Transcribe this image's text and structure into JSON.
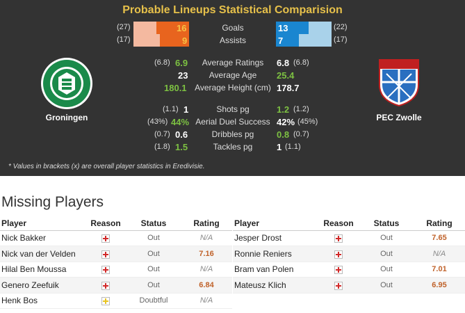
{
  "panel": {
    "title": "Probable Lineups Statistical Comparision",
    "home": {
      "name": "Groningen",
      "goals": "16",
      "goals_bracket": "(27)",
      "assists": "9",
      "assists_bracket": "(17)",
      "goals_fill": 0.59,
      "assists_fill": 0.53
    },
    "away": {
      "name": "PEC Zwolle",
      "goals": "13",
      "goals_bracket": "(22)",
      "assists": "7",
      "assists_bracket": "(17)",
      "goals_fill": 0.59,
      "assists_fill": 0.41
    },
    "bar_labels": {
      "goals": "Goals",
      "assists": "Assists"
    },
    "stats": [
      {
        "label": "Average Ratings",
        "home_bracket": "(6.8)",
        "home": "6.9",
        "away": "6.8",
        "away_bracket": "(6.8)"
      },
      {
        "label": "Average Age",
        "home_bracket": "",
        "home": "23",
        "away": "25.4",
        "away_bracket": ""
      },
      {
        "label": "Average Height (cm)",
        "home_bracket": "",
        "home": "180.1",
        "away": "178.7",
        "away_bracket": ""
      },
      {
        "label": "Shots pg",
        "home_bracket": "(1.1)",
        "home": "1",
        "away": "1.2",
        "away_bracket": "(1.2)"
      },
      {
        "label": "Aerial Duel Success",
        "home_bracket": "(43%)",
        "home": "44%",
        "away": "42%",
        "away_bracket": "(45%)"
      },
      {
        "label": "Dribbles pg",
        "home_bracket": "(0.7)",
        "home": "0.6",
        "away": "0.8",
        "away_bracket": "(0.7)"
      },
      {
        "label": "Tackles pg",
        "home_bracket": "(1.8)",
        "home": "1.5",
        "away": "1",
        "away_bracket": "(1.1)"
      }
    ],
    "footnote": "* Values in brackets (x) are overall player statistics in Eredivisie.",
    "colors": {
      "home_bar": "#e8641e",
      "home_bar_light": "#f4b9a0",
      "away_bar": "#1a86d0",
      "away_bar_light": "#a9d2ea",
      "better": "#7dc142"
    }
  },
  "missing": {
    "title": "Missing Players",
    "headers": {
      "player": "Player",
      "reason": "Reason",
      "status": "Status",
      "rating": "Rating"
    },
    "home": [
      {
        "player": "Nick Bakker",
        "status": "Out",
        "rating": "N/A"
      },
      {
        "player": "Nick van der Velden",
        "status": "Out",
        "rating": "7.16"
      },
      {
        "player": "Hilal Ben Moussa",
        "status": "Out",
        "rating": "N/A"
      },
      {
        "player": "Genero Zeefuik",
        "status": "Out",
        "rating": "6.84"
      },
      {
        "player": "Henk Bos",
        "status": "Doubtful",
        "rating": "N/A"
      }
    ],
    "away": [
      {
        "player": "Jesper Drost",
        "status": "Out",
        "rating": "7.65"
      },
      {
        "player": "Ronnie Reniers",
        "status": "Out",
        "rating": "N/A"
      },
      {
        "player": "Bram van Polen",
        "status": "Out",
        "rating": "7.01"
      },
      {
        "player": "Mateusz Klich",
        "status": "Out",
        "rating": "6.95"
      }
    ]
  }
}
